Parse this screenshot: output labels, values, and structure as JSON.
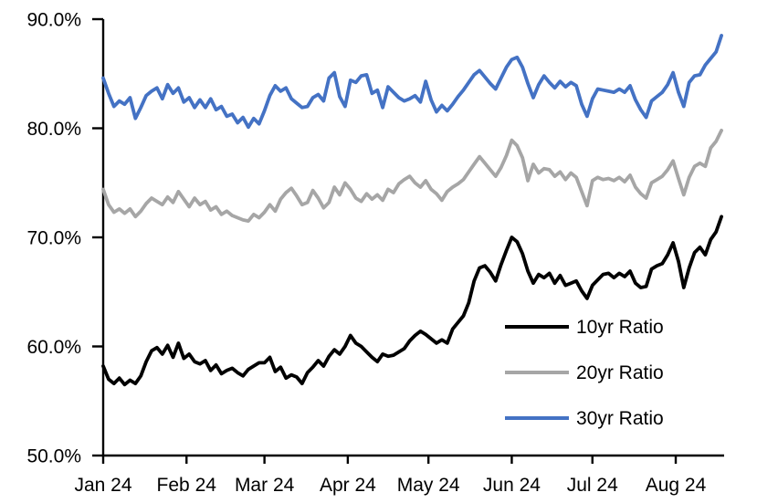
{
  "chart_data": {
    "type": "line",
    "title": "",
    "xlabel": "",
    "ylabel": "",
    "grid": false,
    "ylim": [
      50,
      90
    ],
    "y_tick_values": [
      90,
      80,
      70,
      60,
      50
    ],
    "y_tick_labels": [
      "90.0%",
      "80.0%",
      "70.0%",
      "60.0%",
      "50.0%"
    ],
    "x_total_days": 231,
    "x_start": "Jan 2024",
    "x_tick_days": [
      0,
      31,
      60,
      91,
      121,
      152,
      182,
      213
    ],
    "x_tick_labels": [
      "Jan 24",
      "Feb 24",
      "Mar 24",
      "Apr 24",
      "May 24",
      "Jun 24",
      "Jul 24",
      "Aug 24"
    ],
    "sample_step_days": 2,
    "legend_position": "inside-lower-right",
    "series": [
      {
        "name": "10yr Ratio",
        "color": "#000000",
        "values": [
          58.2,
          57.0,
          56.6,
          57.1,
          56.5,
          56.9,
          56.6,
          57.3,
          58.6,
          59.6,
          59.9,
          59.3,
          60.1,
          59.0,
          60.3,
          58.9,
          59.3,
          58.6,
          58.4,
          58.7,
          57.8,
          58.3,
          57.5,
          57.8,
          58.0,
          57.6,
          57.3,
          57.9,
          58.2,
          58.5,
          58.5,
          59.0,
          57.7,
          58.1,
          57.1,
          57.4,
          57.2,
          56.6,
          57.6,
          58.1,
          58.7,
          58.2,
          59.1,
          59.7,
          59.3,
          60.0,
          61.0,
          60.3,
          60.0,
          59.5,
          59.0,
          58.6,
          59.3,
          59.1,
          59.2,
          59.5,
          59.8,
          60.5,
          61.0,
          61.4,
          61.1,
          60.7,
          60.3,
          60.6,
          60.3,
          61.6,
          62.2,
          62.8,
          64.0,
          66.0,
          67.2,
          67.4,
          66.8,
          66.0,
          67.5,
          68.8,
          70.0,
          69.6,
          68.5,
          66.9,
          65.8,
          66.6,
          66.3,
          66.7,
          65.8,
          66.5,
          65.6,
          65.8,
          66.0,
          65.1,
          64.4,
          65.6,
          66.1,
          66.6,
          66.7,
          66.3,
          66.7,
          66.4,
          66.9,
          65.8,
          65.4,
          65.5,
          67.1,
          67.4,
          67.6,
          68.4,
          69.5,
          67.8,
          65.4,
          67.2,
          68.6,
          69.1,
          68.4,
          69.8,
          70.5,
          71.9
        ]
      },
      {
        "name": "20yr Ratio",
        "color": "#A6A6A6",
        "values": [
          74.4,
          73.0,
          72.3,
          72.6,
          72.2,
          72.6,
          71.9,
          72.4,
          73.1,
          73.6,
          73.3,
          73.0,
          73.7,
          73.2,
          74.2,
          73.5,
          72.8,
          73.6,
          73.0,
          73.3,
          72.5,
          72.8,
          72.1,
          72.4,
          72.0,
          71.8,
          71.6,
          71.5,
          72.1,
          71.8,
          72.3,
          73.0,
          72.4,
          73.5,
          74.1,
          74.5,
          73.8,
          73.0,
          73.2,
          74.3,
          73.6,
          72.7,
          73.2,
          74.6,
          73.9,
          75.0,
          74.4,
          73.6,
          73.3,
          74.0,
          73.5,
          73.9,
          73.4,
          74.4,
          74.1,
          74.9,
          75.3,
          75.6,
          75.0,
          74.6,
          75.2,
          74.4,
          74.0,
          73.4,
          74.2,
          74.6,
          74.9,
          75.3,
          76.0,
          76.7,
          77.4,
          76.8,
          76.2,
          75.6,
          76.4,
          77.5,
          78.9,
          78.4,
          77.3,
          75.2,
          76.7,
          75.9,
          76.3,
          76.2,
          75.6,
          76.0,
          75.3,
          75.9,
          75.5,
          74.2,
          72.9,
          75.2,
          75.5,
          75.3,
          75.4,
          75.2,
          75.5,
          75.1,
          75.7,
          74.6,
          74.0,
          73.6,
          75.0,
          75.3,
          75.6,
          76.2,
          77.0,
          75.4,
          73.9,
          75.5,
          76.5,
          76.8,
          76.5,
          78.2,
          78.8,
          79.8
        ]
      },
      {
        "name": "30yr Ratio",
        "color": "#4472C4",
        "values": [
          84.6,
          83.2,
          82.0,
          82.5,
          82.2,
          82.8,
          80.9,
          81.9,
          83.0,
          83.4,
          83.7,
          82.7,
          84.0,
          83.2,
          83.7,
          82.4,
          82.8,
          81.9,
          82.6,
          81.9,
          82.7,
          81.7,
          82.0,
          81.1,
          81.3,
          80.5,
          81.0,
          80.1,
          80.9,
          80.4,
          81.6,
          83.0,
          83.9,
          83.4,
          83.7,
          82.7,
          82.3,
          81.9,
          82.0,
          82.8,
          83.1,
          82.5,
          84.6,
          85.1,
          82.9,
          82.0,
          84.4,
          84.2,
          84.8,
          84.9,
          83.2,
          83.5,
          81.9,
          83.8,
          83.3,
          82.8,
          82.5,
          82.7,
          83.0,
          82.4,
          84.3,
          82.6,
          81.5,
          82.1,
          81.6,
          82.2,
          82.9,
          83.5,
          84.2,
          84.9,
          85.3,
          84.7,
          84.1,
          83.6,
          84.6,
          85.6,
          86.3,
          86.5,
          85.6,
          84.1,
          82.8,
          84.0,
          84.8,
          84.2,
          83.7,
          84.3,
          83.8,
          84.2,
          83.9,
          82.2,
          81.1,
          82.7,
          83.6,
          83.5,
          83.4,
          83.3,
          83.6,
          83.3,
          83.9,
          82.6,
          81.7,
          81.0,
          82.5,
          82.9,
          83.3,
          84.0,
          85.1,
          83.3,
          82.0,
          84.2,
          84.8,
          84.9,
          85.8,
          86.4,
          87.0,
          88.5
        ]
      }
    ]
  }
}
